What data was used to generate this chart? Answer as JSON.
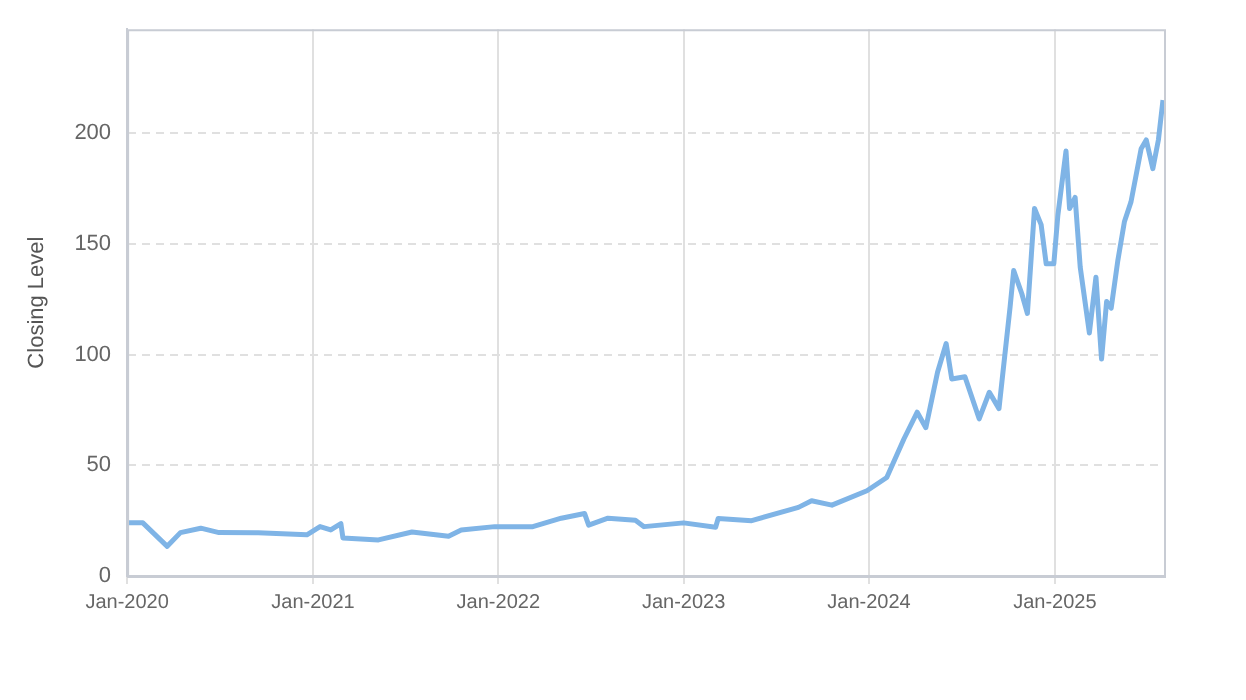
{
  "chart_data": {
    "type": "line",
    "ylabel": "Closing Level",
    "x": [
      "2020-01-01",
      "2020-02-01",
      "2020-03-20",
      "2020-04-15",
      "2020-05-25",
      "2020-06-30",
      "2020-09-15",
      "2020-12-20",
      "2021-01-15",
      "2021-02-05",
      "2021-02-25",
      "2021-03-01",
      "2021-05-10",
      "2021-07-15",
      "2021-09-25",
      "2021-10-20",
      "2021-12-25",
      "2022-03-10",
      "2022-05-05",
      "2022-06-20",
      "2022-06-28",
      "2022-08-05",
      "2022-09-28",
      "2022-10-15",
      "2023-01-01",
      "2023-03-05",
      "2023-03-10",
      "2023-05-15",
      "2023-08-15",
      "2023-09-10",
      "2023-10-20",
      "2023-12-28",
      "2024-02-05",
      "2024-03-10",
      "2024-04-05",
      "2024-04-22",
      "2024-05-15",
      "2024-06-01",
      "2024-06-12",
      "2024-07-08",
      "2024-08-05",
      "2024-08-25",
      "2024-09-13",
      "2024-10-05",
      "2024-10-12",
      "2024-10-28",
      "2024-11-08",
      "2024-11-22",
      "2024-12-05",
      "2024-12-15",
      "2024-12-30",
      "2025-01-07",
      "2025-01-23",
      "2025-01-30",
      "2025-02-10",
      "2025-02-20",
      "2025-03-10",
      "2025-03-23",
      "2025-04-03",
      "2025-04-13",
      "2025-04-22",
      "2025-05-05",
      "2025-05-18",
      "2025-05-31",
      "2025-06-20",
      "2025-06-30",
      "2025-07-13",
      "2025-07-24",
      "2025-08-02"
    ],
    "series": [
      {
        "color": "#7fb4e6",
        "values": [
          24,
          24,
          13.4,
          19.6,
          21.6,
          19.6,
          19.5,
          18.6,
          22.3,
          20.8,
          23.7,
          17.2,
          16.3,
          19.9,
          18,
          20.8,
          22.3,
          22.3,
          26.1,
          28.2,
          23,
          26.1,
          25.2,
          22.3,
          24,
          22,
          26,
          25,
          31,
          34,
          32,
          38.5,
          44.5,
          62,
          74,
          67,
          92,
          105,
          89,
          90,
          71,
          83,
          75.6,
          121.7,
          138,
          127.5,
          118.6,
          166,
          158.7,
          141,
          141,
          163,
          192,
          166,
          171,
          139.5,
          109.8,
          135,
          98,
          124,
          121,
          142.4,
          160,
          169,
          193,
          197,
          184,
          197,
          215
        ]
      }
    ],
    "xlim": [
      "2020-01-01",
      "2025-08-04"
    ],
    "xticks": [
      {
        "value": "2020-01-01",
        "label": "Jan-2020"
      },
      {
        "value": "2021-01-01",
        "label": "Jan-2021"
      },
      {
        "value": "2022-01-01",
        "label": "Jan-2022"
      },
      {
        "value": "2023-01-01",
        "label": "Jan-2023"
      },
      {
        "value": "2024-01-01",
        "label": "Jan-2024"
      },
      {
        "value": "2025-01-01",
        "label": "Jan-2025"
      }
    ],
    "ylim": [
      0,
      247
    ],
    "yticks": [
      0,
      50,
      100,
      150,
      200
    ],
    "grid": true,
    "legend": false,
    "marker": "none",
    "line_style": "solid"
  }
}
